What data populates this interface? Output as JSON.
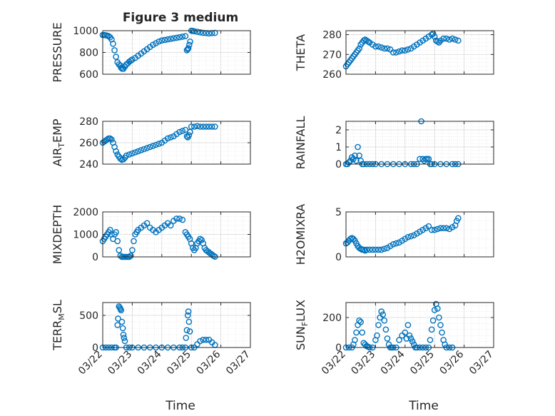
{
  "figure": {
    "title": "Figure 3 medium",
    "xlabel": "Time"
  },
  "chart_data": [
    {
      "type": "scatter",
      "ylabel": "PRESSURE",
      "ylim": [
        600,
        1000
      ],
      "yticks": [
        600,
        800,
        1000
      ],
      "xticks": [
        "03/22",
        "03/23",
        "03/24",
        "03/25",
        "03/26",
        "03/27"
      ],
      "xlim": [
        0,
        5
      ],
      "grid": true,
      "color": "#0072bd",
      "series": [
        {
          "x": [
            0.0,
            0.05,
            0.1,
            0.15,
            0.2,
            0.25,
            0.3,
            0.35,
            0.4,
            0.45,
            0.5,
            0.55,
            0.6,
            0.62,
            0.66,
            0.7,
            0.75,
            0.8,
            0.85,
            0.9,
            0.95,
            1.0,
            1.1,
            1.2,
            1.3,
            1.4,
            1.5,
            1.6,
            1.7,
            1.8,
            1.9,
            2.0,
            2.1,
            2.2,
            2.3,
            2.4,
            2.5,
            2.6,
            2.7,
            2.8,
            2.85,
            2.88,
            2.9,
            2.93,
            2.96,
            3.0,
            3.05,
            3.1,
            3.2,
            3.3,
            3.4,
            3.5,
            3.6,
            3.7,
            3.8
          ],
          "y": [
            960,
            960,
            958,
            955,
            950,
            940,
            920,
            880,
            820,
            760,
            710,
            690,
            680,
            660,
            650,
            650,
            670,
            690,
            700,
            715,
            725,
            735,
            750,
            770,
            790,
            810,
            830,
            850,
            870,
            885,
            900,
            910,
            915,
            920,
            925,
            930,
            935,
            940,
            945,
            950,
            820,
            830,
            840,
            870,
            900,
            1000,
            998,
            995,
            990,
            985,
            980,
            978,
            975,
            978,
            980
          ]
        }
      ]
    },
    {
      "type": "scatter",
      "ylabel": "THETA",
      "ylim": [
        260,
        282
      ],
      "yticks": [
        260,
        270,
        280
      ],
      "xticks": [
        "03/22",
        "03/23",
        "03/24",
        "03/25",
        "03/26",
        "03/27"
      ],
      "xlim": [
        0,
        5
      ],
      "grid": true,
      "color": "#0072bd",
      "series": [
        {
          "x": [
            0.0,
            0.05,
            0.1,
            0.15,
            0.2,
            0.25,
            0.3,
            0.35,
            0.4,
            0.45,
            0.5,
            0.55,
            0.6,
            0.65,
            0.7,
            0.75,
            0.8,
            0.9,
            1.0,
            1.1,
            1.2,
            1.3,
            1.4,
            1.5,
            1.6,
            1.7,
            1.8,
            1.9,
            2.0,
            2.1,
            2.2,
            2.3,
            2.4,
            2.5,
            2.6,
            2.7,
            2.8,
            2.9,
            2.95,
            3.0,
            3.05,
            3.1,
            3.15,
            3.2,
            3.3,
            3.4,
            3.5,
            3.6,
            3.7,
            3.8
          ],
          "y": [
            264,
            265,
            266,
            267,
            268,
            269,
            270,
            271,
            272,
            273,
            275,
            276,
            277,
            277.5,
            277,
            276.5,
            276,
            275,
            274,
            274,
            273.5,
            273,
            273,
            272.5,
            271,
            271,
            271.5,
            272,
            272,
            272.5,
            273,
            274,
            275,
            276,
            277,
            278,
            279,
            280,
            280.5,
            279,
            277,
            276.5,
            276,
            277,
            278,
            278,
            277.5,
            278,
            277.5,
            277
          ]
        }
      ]
    },
    {
      "type": "scatter",
      "ylabel": "AIR_TEMP",
      "ylim": [
        240,
        280
      ],
      "yticks": [
        240,
        260,
        280
      ],
      "xticks": [
        "03/22",
        "03/23",
        "03/24",
        "03/25",
        "03/26",
        "03/27"
      ],
      "xlim": [
        0,
        5
      ],
      "grid": true,
      "color": "#0072bd",
      "series": [
        {
          "x": [
            0.0,
            0.05,
            0.1,
            0.15,
            0.2,
            0.25,
            0.3,
            0.35,
            0.4,
            0.45,
            0.5,
            0.55,
            0.6,
            0.65,
            0.7,
            0.75,
            0.8,
            0.9,
            1.0,
            1.1,
            1.2,
            1.3,
            1.4,
            1.5,
            1.6,
            1.7,
            1.8,
            1.9,
            2.0,
            2.1,
            2.2,
            2.3,
            2.4,
            2.5,
            2.6,
            2.7,
            2.8,
            2.85,
            2.88,
            2.92,
            2.96,
            3.0,
            3.1,
            3.2,
            3.3,
            3.4,
            3.5,
            3.6,
            3.7,
            3.8
          ],
          "y": [
            260,
            261,
            262,
            263,
            264,
            264,
            263,
            260,
            256,
            252,
            249,
            247,
            245,
            244,
            244.5,
            246,
            248,
            249,
            250,
            251,
            252,
            253,
            254,
            255,
            256,
            257,
            258,
            259,
            260,
            262,
            264,
            265,
            266,
            268,
            270,
            271,
            272,
            266,
            265,
            267,
            270,
            275,
            275,
            275.5,
            275,
            275,
            275,
            275,
            275,
            275
          ]
        }
      ]
    },
    {
      "type": "scatter",
      "ylabel": "RAINFALL",
      "ylim": [
        0,
        2.5
      ],
      "yticks": [
        0,
        1,
        2
      ],
      "xticks": [
        "03/22",
        "03/23",
        "03/24",
        "03/25",
        "03/26",
        "03/27"
      ],
      "xlim": [
        0,
        5
      ],
      "grid": true,
      "color": "#0072bd",
      "series": [
        {
          "x": [
            0.0,
            0.05,
            0.1,
            0.15,
            0.2,
            0.25,
            0.3,
            0.35,
            0.4,
            0.45,
            0.5,
            0.55,
            0.6,
            0.7,
            0.8,
            0.9,
            1.0,
            1.2,
            1.4,
            1.6,
            1.8,
            2.0,
            2.2,
            2.3,
            2.4,
            2.5,
            2.55,
            2.6,
            2.65,
            2.7,
            2.75,
            2.8,
            2.85,
            2.9,
            3.0,
            3.2,
            3.4,
            3.6,
            3.7,
            3.8
          ],
          "y": [
            0,
            0,
            0.1,
            0.2,
            0.4,
            0.3,
            0.5,
            0.2,
            1.0,
            0.5,
            0.2,
            0,
            0,
            0,
            0,
            0,
            0,
            0,
            0,
            0,
            0,
            0,
            0,
            0,
            0,
            0.3,
            2.5,
            0.3,
            0.2,
            0.3,
            0.3,
            0.3,
            0,
            0,
            0,
            0,
            0,
            0,
            0,
            0
          ]
        }
      ]
    },
    {
      "type": "scatter",
      "ylabel": "MIXDEPTH",
      "ylim": [
        0,
        2000
      ],
      "yticks": [
        0,
        1000,
        2000
      ],
      "xticks": [
        "03/22",
        "03/23",
        "03/24",
        "03/25",
        "03/26",
        "03/27"
      ],
      "xlim": [
        0,
        5
      ],
      "grid": true,
      "color": "#0072bd",
      "series": [
        {
          "x": [
            0.0,
            0.05,
            0.1,
            0.15,
            0.2,
            0.25,
            0.3,
            0.35,
            0.4,
            0.45,
            0.5,
            0.55,
            0.6,
            0.65,
            0.7,
            0.75,
            0.8,
            0.85,
            0.9,
            0.95,
            1.0,
            1.05,
            1.1,
            1.15,
            1.2,
            1.3,
            1.4,
            1.5,
            1.6,
            1.7,
            1.8,
            1.9,
            2.0,
            2.1,
            2.2,
            2.3,
            2.4,
            2.5,
            2.6,
            2.7,
            2.8,
            2.85,
            2.9,
            2.95,
            3.0,
            3.05,
            3.1,
            3.15,
            3.2,
            3.25,
            3.3,
            3.35,
            3.4,
            3.45,
            3.5,
            3.55,
            3.6,
            3.65,
            3.7,
            3.75,
            3.8
          ],
          "y": [
            700,
            800,
            900,
            1000,
            1100,
            1200,
            1000,
            800,
            1000,
            1100,
            700,
            300,
            50,
            0,
            0,
            0,
            0,
            0,
            0,
            50,
            300,
            700,
            1000,
            1100,
            1200,
            1300,
            1400,
            1500,
            1300,
            1200,
            1100,
            1200,
            1300,
            1400,
            1500,
            1400,
            1600,
            1700,
            1700,
            1650,
            1100,
            1000,
            900,
            800,
            600,
            400,
            300,
            400,
            600,
            700,
            800,
            750,
            600,
            400,
            300,
            250,
            200,
            150,
            100,
            50,
            10
          ]
        }
      ]
    },
    {
      "type": "scatter",
      "ylabel": "H2OMIXRA",
      "ylim": [
        0,
        5
      ],
      "yticks": [
        0,
        5
      ],
      "xticks": [
        "03/22",
        "03/23",
        "03/24",
        "03/25",
        "03/26",
        "03/27"
      ],
      "xlim": [
        0,
        5
      ],
      "grid": true,
      "color": "#0072bd",
      "series": [
        {
          "x": [
            0.0,
            0.05,
            0.1,
            0.15,
            0.2,
            0.25,
            0.3,
            0.35,
            0.4,
            0.45,
            0.5,
            0.55,
            0.6,
            0.65,
            0.7,
            0.8,
            0.9,
            1.0,
            1.1,
            1.2,
            1.3,
            1.4,
            1.5,
            1.6,
            1.7,
            1.8,
            1.9,
            2.0,
            2.1,
            2.2,
            2.3,
            2.4,
            2.5,
            2.6,
            2.7,
            2.8,
            2.9,
            3.0,
            3.1,
            3.2,
            3.3,
            3.4,
            3.5,
            3.6,
            3.7,
            3.75,
            3.8
          ],
          "y": [
            1.5,
            1.6,
            1.8,
            2.0,
            2.1,
            2.0,
            1.8,
            1.5,
            1.2,
            1.0,
            0.9,
            0.8,
            0.8,
            0.7,
            0.8,
            0.8,
            0.8,
            0.8,
            0.8,
            0.8,
            0.9,
            1.0,
            1.2,
            1.4,
            1.5,
            1.6,
            1.8,
            2.0,
            2.2,
            2.3,
            2.4,
            2.6,
            2.8,
            3.0,
            3.2,
            3.4,
            3.0,
            3.0,
            3.1,
            3.2,
            3.2,
            3.2,
            3.1,
            3.3,
            3.5,
            4.0,
            4.3
          ]
        }
      ]
    },
    {
      "type": "scatter",
      "ylabel": "TERR_MSL",
      "ylim": [
        0,
        700
      ],
      "yticks": [
        0,
        500
      ],
      "xticks": [
        "03/22",
        "03/23",
        "03/24",
        "03/25",
        "03/26",
        "03/27"
      ],
      "xlim": [
        0,
        5
      ],
      "grid": true,
      "color": "#0072bd",
      "series": [
        {
          "x": [
            0.0,
            0.1,
            0.2,
            0.3,
            0.4,
            0.45,
            0.5,
            0.52,
            0.55,
            0.58,
            0.6,
            0.62,
            0.65,
            0.68,
            0.7,
            0.72,
            0.75,
            0.8,
            0.9,
            1.0,
            1.2,
            1.4,
            1.6,
            1.8,
            2.0,
            2.2,
            2.4,
            2.6,
            2.7,
            2.8,
            2.82,
            2.85,
            2.88,
            2.9,
            2.92,
            2.95,
            3.0,
            3.1,
            3.2,
            3.3,
            3.4,
            3.5,
            3.6,
            3.7,
            3.8
          ],
          "y": [
            0,
            0,
            0,
            0,
            0,
            0,
            350,
            450,
            640,
            620,
            600,
            580,
            400,
            300,
            200,
            150,
            100,
            0,
            0,
            0,
            0,
            0,
            0,
            0,
            0,
            0,
            0,
            0,
            0,
            0,
            150,
            270,
            500,
            560,
            400,
            250,
            0,
            0,
            50,
            100,
            120,
            120,
            120,
            80,
            40
          ]
        }
      ]
    },
    {
      "type": "scatter",
      "ylabel": "SUN_FLUX",
      "ylim": [
        0,
        300
      ],
      "yticks": [
        0,
        200
      ],
      "xticks": [
        "03/22",
        "03/23",
        "03/24",
        "03/25",
        "03/26",
        "03/27"
      ],
      "xlim": [
        0,
        5
      ],
      "grid": true,
      "color": "#0072bd",
      "series": [
        {
          "x": [
            0.0,
            0.1,
            0.2,
            0.25,
            0.3,
            0.35,
            0.4,
            0.45,
            0.5,
            0.55,
            0.6,
            0.65,
            0.7,
            0.75,
            0.8,
            0.9,
            1.0,
            1.05,
            1.1,
            1.15,
            1.2,
            1.25,
            1.3,
            1.35,
            1.4,
            1.45,
            1.5,
            1.55,
            1.6,
            1.7,
            1.8,
            1.9,
            2.0,
            2.05,
            2.1,
            2.15,
            2.2,
            2.25,
            2.3,
            2.35,
            2.4,
            2.5,
            2.6,
            2.7,
            2.8,
            2.85,
            2.9,
            2.95,
            3.0,
            3.05,
            3.1,
            3.15,
            3.2,
            3.25,
            3.3,
            3.35,
            3.4,
            3.5,
            3.6
          ],
          "y": [
            0,
            0,
            0,
            20,
            50,
            100,
            150,
            180,
            170,
            100,
            30,
            20,
            10,
            5,
            0,
            0,
            50,
            80,
            150,
            200,
            240,
            220,
            180,
            120,
            60,
            20,
            0,
            0,
            0,
            0,
            50,
            80,
            100,
            60,
            150,
            80,
            60,
            40,
            20,
            0,
            0,
            0,
            0,
            0,
            0,
            50,
            120,
            180,
            250,
            290,
            260,
            200,
            150,
            100,
            50,
            20,
            0,
            0,
            0
          ]
        }
      ]
    }
  ]
}
